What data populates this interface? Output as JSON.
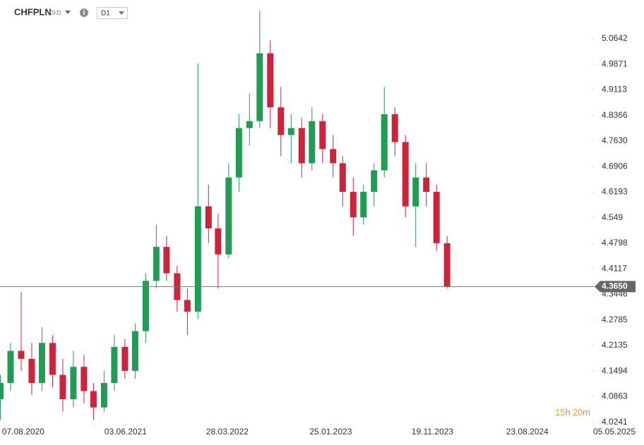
{
  "header": {
    "symbol": "CHFPLN",
    "instrument_type": "CFD",
    "interval": "D1"
  },
  "chart_data": {
    "type": "candlestick",
    "x": [
      "2020-06-01",
      "2020-07-01",
      "2020-08-01",
      "2020-09-01",
      "2020-10-01",
      "2020-11-01",
      "2020-12-01",
      "2021-01-01",
      "2021-02-01",
      "2021-03-01",
      "2021-04-01",
      "2021-05-01",
      "2021-06-01",
      "2021-07-01",
      "2021-08-01",
      "2021-09-01",
      "2021-10-01",
      "2021-11-01",
      "2021-12-01",
      "2022-01-01",
      "2022-02-01",
      "2022-03-01",
      "2022-04-01",
      "2022-05-01",
      "2022-06-01",
      "2022-07-01",
      "2022-08-01",
      "2022-09-01",
      "2022-10-01",
      "2022-11-01",
      "2022-12-01",
      "2023-01-01",
      "2023-02-01",
      "2023-03-01",
      "2023-04-01",
      "2023-05-01",
      "2023-06-01",
      "2023-07-01",
      "2023-08-01",
      "2023-09-01",
      "2023-10-01",
      "2023-11-01",
      "2023-12-01",
      "2024-01-01"
    ],
    "open": [
      4.08,
      4.12,
      4.2,
      4.18,
      4.12,
      4.22,
      4.14,
      4.08,
      4.16,
      4.1,
      4.06,
      4.12,
      4.21,
      4.15,
      4.25,
      4.38,
      4.47,
      4.4,
      4.33,
      4.3,
      4.58,
      4.52,
      4.45,
      4.66,
      4.8,
      4.82,
      5.02,
      4.86,
      4.78,
      4.8,
      4.7,
      4.82,
      4.74,
      4.7,
      4.62,
      4.55,
      4.62,
      4.68,
      4.84,
      4.76,
      4.58,
      4.66,
      4.62,
      4.48
    ],
    "high": [
      4.14,
      4.22,
      4.35,
      4.22,
      4.26,
      4.24,
      4.18,
      4.2,
      4.19,
      4.12,
      4.15,
      4.24,
      4.23,
      4.27,
      4.4,
      4.53,
      4.5,
      4.42,
      4.36,
      4.99,
      4.64,
      4.56,
      4.7,
      4.84,
      4.9,
      5.15,
      5.06,
      4.92,
      4.84,
      4.83,
      4.86,
      4.84,
      4.78,
      4.72,
      4.66,
      4.64,
      4.7,
      4.92,
      4.86,
      4.78,
      4.7,
      4.7,
      4.64,
      4.5
    ],
    "low": [
      4.03,
      4.1,
      4.15,
      4.09,
      4.1,
      4.11,
      4.05,
      4.06,
      4.07,
      4.03,
      4.05,
      4.1,
      4.13,
      4.13,
      4.22,
      4.36,
      4.38,
      4.3,
      4.24,
      4.28,
      4.48,
      4.36,
      4.44,
      4.62,
      4.75,
      4.8,
      4.8,
      4.72,
      4.7,
      4.66,
      4.68,
      4.7,
      4.66,
      4.58,
      4.5,
      4.53,
      4.58,
      4.66,
      4.72,
      4.55,
      4.47,
      4.58,
      4.46,
      4.36
    ],
    "close": [
      4.12,
      4.2,
      4.18,
      4.12,
      4.22,
      4.14,
      4.08,
      4.16,
      4.1,
      4.06,
      4.12,
      4.21,
      4.15,
      4.25,
      4.38,
      4.47,
      4.4,
      4.33,
      4.3,
      4.58,
      4.52,
      4.45,
      4.66,
      4.8,
      4.82,
      5.02,
      4.86,
      4.78,
      4.8,
      4.7,
      4.82,
      4.74,
      4.7,
      4.62,
      4.55,
      4.62,
      4.68,
      4.84,
      4.76,
      4.58,
      4.66,
      4.62,
      4.48,
      4.365
    ],
    "up_color": "#1f9d55",
    "down_color": "#d0233a",
    "log_scale": true,
    "ylim": [
      4.022,
      5.172
    ],
    "yticks": [
      5.0642,
      4.9871,
      4.9113,
      4.8366,
      {
        "value": 4.763,
        "label": "4.7630"
      },
      4.6906,
      4.6193,
      4.549,
      4.4798,
      4.4117,
      4.3446,
      4.2785,
      4.2135,
      4.1494,
      4.0863,
      4.0241
    ],
    "xlim": [
      "2020-05-31",
      "2025-05-05"
    ],
    "xticks": [
      {
        "value": "2020-08-07",
        "label": "07.08.2020"
      },
      {
        "value": "2021-06-03",
        "label": "03.06.2021"
      },
      {
        "value": "2022-03-28",
        "label": "28.03.2022"
      },
      {
        "value": "2023-01-25",
        "label": "25.01.2023"
      },
      {
        "value": "2023-11-19",
        "label": "19.11.2023"
      },
      {
        "value": "2024-08-23",
        "label": "23.08.2024"
      },
      {
        "value": "2025-05-05",
        "label": "05.05.2025"
      }
    ],
    "current_price": {
      "value": 4.365,
      "label": "4.3650"
    },
    "countdown": {
      "hours": "15",
      "hours_unit": "h",
      "minutes": "20",
      "minutes_unit": "m"
    }
  }
}
